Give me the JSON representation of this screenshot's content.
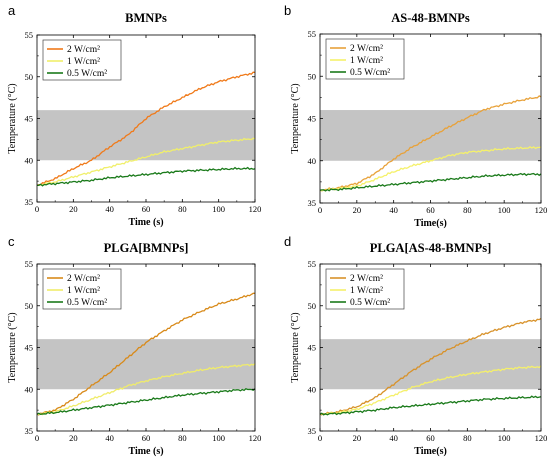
{
  "chart_data": [
    {
      "panel": "a",
      "type": "line",
      "title": "BMNPs",
      "xlabel": "Time (s)",
      "ylabel": "Temperature (°C)",
      "xlim": [
        0,
        120
      ],
      "ylim": [
        35,
        55
      ],
      "xticks": [
        0,
        20,
        40,
        60,
        80,
        100,
        120
      ],
      "yticks": [
        35,
        40,
        45,
        50,
        55
      ],
      "band": [
        40,
        46
      ],
      "legend": "top-left",
      "series": [
        {
          "name": "2 W/cm²",
          "color": "#f07a1a",
          "x": [
            0,
            10,
            20,
            30,
            40,
            50,
            60,
            70,
            80,
            90,
            100,
            110,
            120
          ],
          "y": [
            37,
            37.8,
            39,
            40,
            41.6,
            43,
            45,
            46.4,
            47.5,
            48.6,
            49.4,
            50,
            50.5
          ]
        },
        {
          "name": "1 W/cm²",
          "color": "#f0ef6a",
          "x": [
            0,
            10,
            20,
            30,
            40,
            50,
            60,
            70,
            80,
            90,
            100,
            110,
            120
          ],
          "y": [
            37,
            37.4,
            38,
            38.6,
            39.2,
            39.8,
            40.4,
            41,
            41.4,
            41.8,
            42.2,
            42.4,
            42.6
          ]
        },
        {
          "name": "0.5 W/cm²",
          "color": "#1a7a1a",
          "x": [
            0,
            10,
            20,
            30,
            40,
            50,
            60,
            70,
            80,
            90,
            100,
            110,
            120
          ],
          "y": [
            37,
            37.2,
            37.4,
            37.6,
            37.9,
            38.1,
            38.3,
            38.5,
            38.7,
            38.8,
            38.9,
            39,
            39
          ]
        }
      ]
    },
    {
      "panel": "b",
      "type": "line",
      "title": "AS-48-BMNPs",
      "xlabel": "Time(s)",
      "ylabel": "Temperature (°C)",
      "xlim": [
        0,
        120
      ],
      "ylim": [
        35,
        55
      ],
      "xticks": [
        0,
        20,
        40,
        60,
        80,
        100,
        120
      ],
      "yticks": [
        35,
        40,
        45,
        50,
        55
      ],
      "band": [
        40,
        46
      ],
      "legend": "top-left",
      "series": [
        {
          "name": "2 W/cm²",
          "color": "#e8a23a",
          "x": [
            0,
            10,
            20,
            30,
            40,
            50,
            60,
            70,
            80,
            90,
            100,
            110,
            120
          ],
          "y": [
            36.5,
            36.8,
            37.3,
            38.5,
            40.2,
            41.6,
            42.8,
            44,
            45.1,
            46.1,
            46.7,
            47.2,
            47.6
          ]
        },
        {
          "name": "1 W/cm²",
          "color": "#f5f16a",
          "x": [
            0,
            10,
            20,
            30,
            40,
            50,
            60,
            70,
            80,
            90,
            100,
            110,
            120
          ],
          "y": [
            36.5,
            36.7,
            37,
            37.8,
            38.7,
            39.4,
            40,
            40.6,
            41,
            41.2,
            41.4,
            41.5,
            41.6
          ]
        },
        {
          "name": "0.5 W/cm²",
          "color": "#1a7a1a",
          "x": [
            0,
            10,
            20,
            30,
            40,
            50,
            60,
            70,
            80,
            90,
            100,
            110,
            120
          ],
          "y": [
            36.5,
            36.6,
            36.8,
            37,
            37.2,
            37.4,
            37.6,
            37.8,
            38,
            38.2,
            38.3,
            38.4,
            38.4
          ]
        }
      ]
    },
    {
      "panel": "c",
      "type": "line",
      "title": "PLGA[BMNPs]",
      "xlabel": "Time (s)",
      "ylabel": "Temperature (°C)",
      "xlim": [
        0,
        120
      ],
      "ylim": [
        35,
        55
      ],
      "xticks": [
        0,
        20,
        40,
        60,
        80,
        100,
        120
      ],
      "yticks": [
        35,
        40,
        45,
        50,
        55
      ],
      "band": [
        40,
        46
      ],
      "legend": "top-left",
      "series": [
        {
          "name": "2 W/cm²",
          "color": "#d88a1a",
          "x": [
            0,
            10,
            20,
            30,
            40,
            50,
            60,
            70,
            80,
            90,
            100,
            110,
            120
          ],
          "y": [
            37,
            37.5,
            38.8,
            40.4,
            42,
            43.8,
            45.6,
            47,
            48.3,
            49.3,
            50.2,
            50.8,
            51.5
          ]
        },
        {
          "name": "1 W/cm²",
          "color": "#f0ec6a",
          "x": [
            0,
            10,
            20,
            30,
            40,
            50,
            60,
            70,
            80,
            90,
            100,
            110,
            120
          ],
          "y": [
            37,
            37.3,
            38,
            38.8,
            39.6,
            40.4,
            41,
            41.5,
            41.9,
            42.3,
            42.6,
            42.8,
            43
          ]
        },
        {
          "name": "0.5 W/cm²",
          "color": "#1a7a1a",
          "x": [
            0,
            10,
            20,
            30,
            40,
            50,
            60,
            70,
            80,
            90,
            100,
            110,
            120
          ],
          "y": [
            37,
            37.2,
            37.5,
            37.8,
            38.1,
            38.4,
            38.7,
            39,
            39.3,
            39.5,
            39.7,
            39.9,
            40
          ]
        }
      ]
    },
    {
      "panel": "d",
      "type": "line",
      "title": "PLGA[AS-48-BMNPs]",
      "xlabel": "Time(s)",
      "ylabel": "Temperature (°C)",
      "xlim": [
        0,
        120
      ],
      "ylim": [
        35,
        55
      ],
      "xticks": [
        0,
        20,
        40,
        60,
        80,
        100,
        120
      ],
      "yticks": [
        35,
        40,
        45,
        50,
        55
      ],
      "band": [
        40,
        46
      ],
      "legend": "top-left",
      "series": [
        {
          "name": "2 W/cm²",
          "color": "#d8922a",
          "x": [
            0,
            10,
            20,
            30,
            40,
            50,
            60,
            70,
            80,
            90,
            100,
            110,
            120
          ],
          "y": [
            37,
            37.3,
            37.9,
            39,
            40.6,
            42.2,
            43.6,
            44.8,
            45.8,
            46.7,
            47.4,
            48,
            48.4
          ]
        },
        {
          "name": "1 W/cm²",
          "color": "#f5f06a",
          "x": [
            0,
            10,
            20,
            30,
            40,
            50,
            60,
            70,
            80,
            90,
            100,
            110,
            120
          ],
          "y": [
            37,
            37.2,
            37.6,
            38.4,
            39.3,
            40.2,
            40.9,
            41.4,
            41.8,
            42.1,
            42.4,
            42.6,
            42.7
          ]
        },
        {
          "name": "0.5 W/cm²",
          "color": "#1a7a1a",
          "x": [
            0,
            10,
            20,
            30,
            40,
            50,
            60,
            70,
            80,
            90,
            100,
            110,
            120
          ],
          "y": [
            37,
            37.1,
            37.3,
            37.5,
            37.8,
            38,
            38.2,
            38.4,
            38.6,
            38.8,
            38.9,
            39,
            39.1
          ]
        }
      ]
    }
  ]
}
